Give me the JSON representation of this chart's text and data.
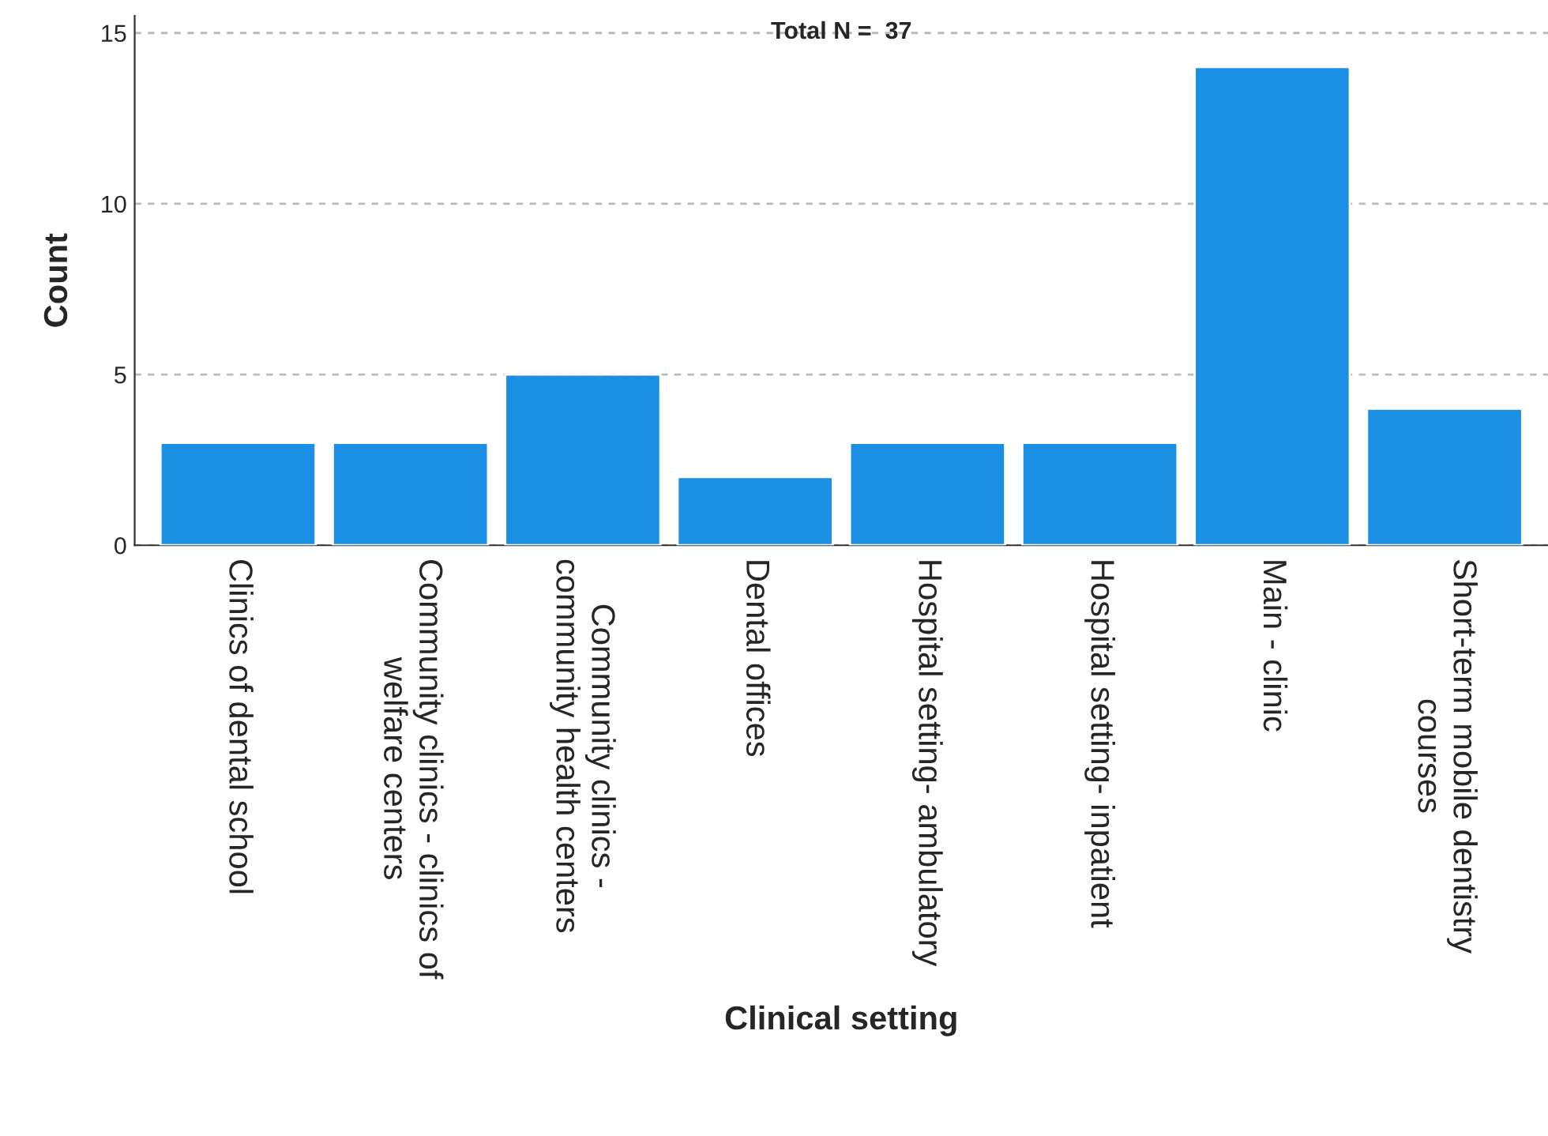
{
  "chart_data": {
    "type": "bar",
    "xlabel": "Clinical setting",
    "ylabel": "Count",
    "categories": [
      "Clinics of dental school",
      "Community clinics - clinics of\nwelfare centers",
      "Community clinics -\ncommunity health centers",
      "Dental offices",
      "Hospital setting- ambulatory",
      "Hospital setting- inpatient",
      "Main - clinic",
      "Short-term mobile dentistry\ncourses"
    ],
    "values": [
      3,
      3,
      5,
      2,
      3,
      3,
      14,
      4
    ],
    "color": "#1a8fe3",
    "ylim": [
      0,
      15.5
    ],
    "yticks": [
      0,
      5,
      10,
      15
    ],
    "grid": "y",
    "annotations": [
      "Total N =  37"
    ]
  }
}
